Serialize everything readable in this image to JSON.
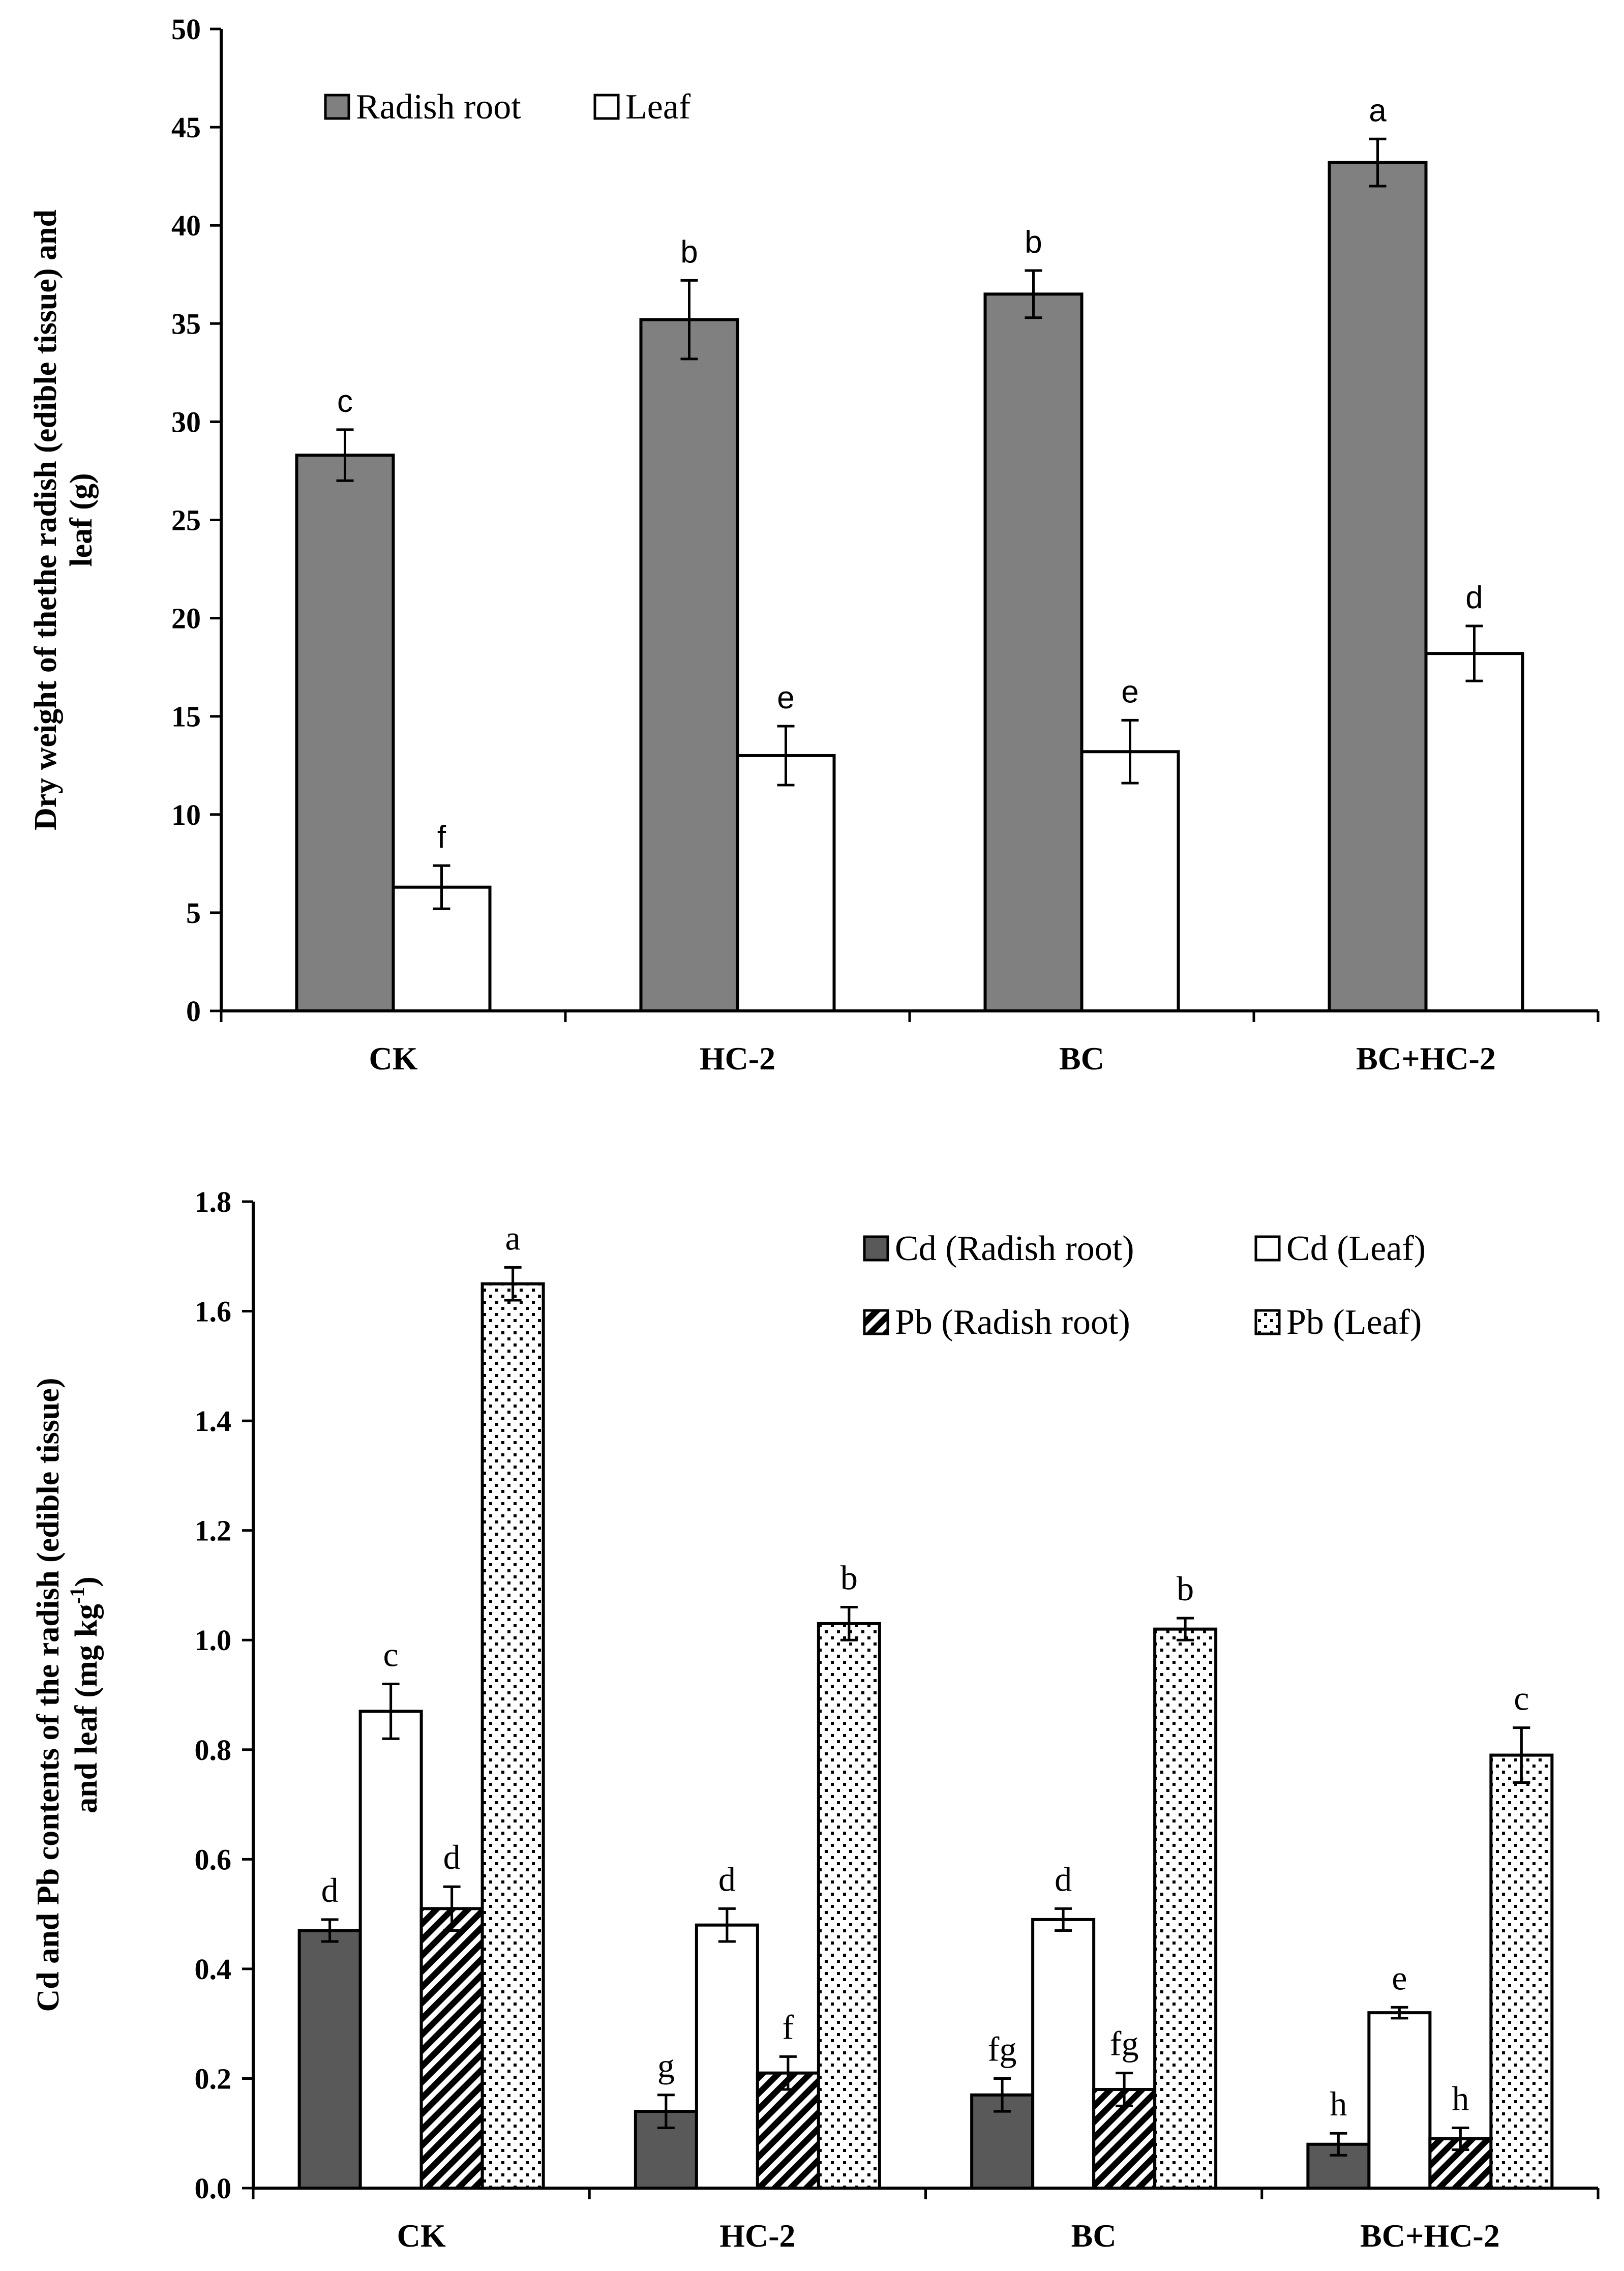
{
  "colors": {
    "dark_gray": "#808080",
    "darker_gray": "#595959",
    "white": "#ffffff",
    "black": "#000000"
  },
  "chart_data": [
    {
      "type": "bar",
      "title": "",
      "xlabel": "",
      "ylabel_lines": [
        "Dry weight of thethe radish (edible tissue) and",
        "leaf (g)"
      ],
      "ylim": [
        0,
        50
      ],
      "yticks": [
        "0",
        "5",
        "10",
        "15",
        "20",
        "25",
        "30",
        "35",
        "40",
        "45",
        "50"
      ],
      "categories": [
        "CK",
        "HC-2",
        "BC",
        "BC+HC-2"
      ],
      "legend_position": "top-left",
      "series": [
        {
          "name": "Radish root",
          "fill": "solid-gray",
          "values": [
            28.3,
            35.2,
            36.5,
            43.2
          ],
          "errors": [
            1.3,
            2.0,
            1.2,
            1.2
          ],
          "letters": [
            "c",
            "b",
            "b",
            "a"
          ]
        },
        {
          "name": "Leaf",
          "fill": "white",
          "values": [
            6.3,
            13.0,
            13.2,
            18.2
          ],
          "errors": [
            1.1,
            1.5,
            1.6,
            1.4
          ],
          "letters": [
            "f",
            "e",
            "e",
            "d"
          ]
        }
      ]
    },
    {
      "type": "bar",
      "title": "",
      "xlabel": "",
      "ylabel_lines": [
        "Cd and Pb contents of the radish (edible tissue)",
        "and leaf (mg kg",
        "-1",
        ")"
      ],
      "ylim": [
        0,
        1.8
      ],
      "yticks": [
        "0.0",
        "0.2",
        "0.4",
        "0.6",
        "0.8",
        "1.0",
        "1.2",
        "1.4",
        "1.6",
        "1.8"
      ],
      "categories": [
        "CK",
        "HC-2",
        "BC",
        "BC+HC-2"
      ],
      "legend_position": "top-right",
      "series": [
        {
          "name": "Cd (Radish root)",
          "fill": "solid-dark",
          "values": [
            0.47,
            0.14,
            0.17,
            0.08
          ],
          "errors": [
            0.02,
            0.03,
            0.03,
            0.02
          ],
          "letters": [
            "d",
            "g",
            "fg",
            "h"
          ]
        },
        {
          "name": "Cd (Leaf)",
          "fill": "white",
          "values": [
            0.87,
            0.48,
            0.49,
            0.32
          ],
          "errors": [
            0.05,
            0.03,
            0.02,
            0.01
          ],
          "letters": [
            "c",
            "d",
            "d",
            "e"
          ]
        },
        {
          "name": "Pb (Radish root)",
          "fill": "hatch",
          "values": [
            0.51,
            0.21,
            0.18,
            0.09
          ],
          "errors": [
            0.04,
            0.03,
            0.03,
            0.02
          ],
          "letters": [
            "d",
            "f",
            "fg",
            "h"
          ]
        },
        {
          "name": "Pb (Leaf)",
          "fill": "dots",
          "values": [
            1.65,
            1.03,
            1.02,
            0.79
          ],
          "errors": [
            0.03,
            0.03,
            0.02,
            0.05
          ],
          "letters": [
            "a",
            "b",
            "b",
            "c"
          ]
        }
      ]
    }
  ]
}
